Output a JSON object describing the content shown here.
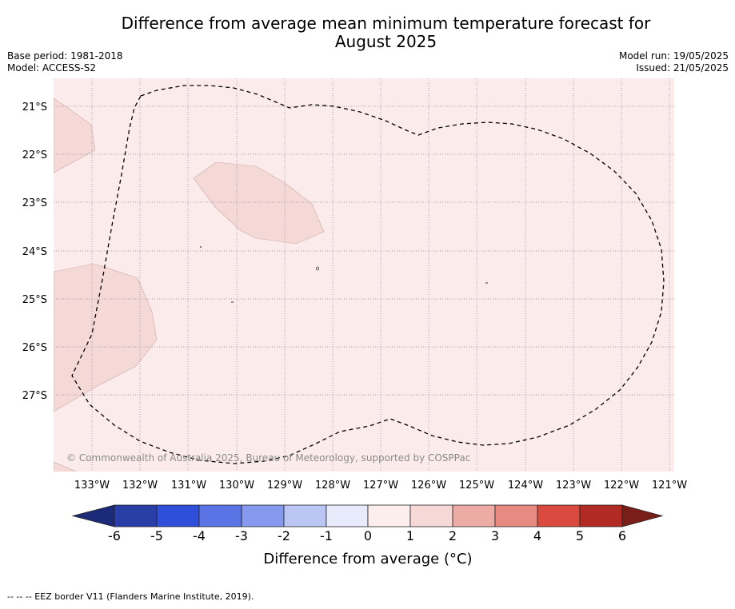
{
  "header": {
    "title_line1": "Difference from average mean minimum temperature forecast for",
    "title_line2": "August 2025",
    "base_period": "Base period: 1981-2018",
    "model": "Model: ACCESS-S2",
    "model_run": "Model run: 19/05/2025",
    "issued": "Issued: 21/05/2025"
  },
  "map": {
    "lon_labels": [
      "133°W",
      "132°W",
      "131°W",
      "130°W",
      "129°W",
      "128°W",
      "127°W",
      "126°W",
      "125°W",
      "124°W",
      "123°W",
      "122°W",
      "121°W"
    ],
    "lat_labels": [
      "21°S",
      "22°S",
      "23°S",
      "24°S",
      "25°S",
      "26°S",
      "27°S"
    ],
    "background_category": "0 to 1",
    "anomaly_patch_category": "1 to 2",
    "copyright": "© Commonwealth of Australia 2025, Bureau of Meteorology, supported by COSPPac"
  },
  "legend": {
    "tick_labels": [
      "-6",
      "-5",
      "-4",
      "-3",
      "-2",
      "-1",
      "0",
      "1",
      "2",
      "3",
      "4",
      "5",
      "6"
    ],
    "colors": [
      "#2a3ea8",
      "#2f4fdb",
      "#5a74e6",
      "#8599ee",
      "#bcc6f5",
      "#e8ebfb",
      "#fdeeee",
      "#f6d9d7",
      "#edaba6",
      "#e68a82",
      "#db4a3f",
      "#b12b24"
    ],
    "extend_low_color": "#1c2a7a",
    "extend_high_color": "#7a1e19",
    "label": "Difference from average (°C)"
  },
  "footer": {
    "eez_note": "--  --  -- EEZ border V11 (Flanders Marine Institute, 2019)."
  }
}
